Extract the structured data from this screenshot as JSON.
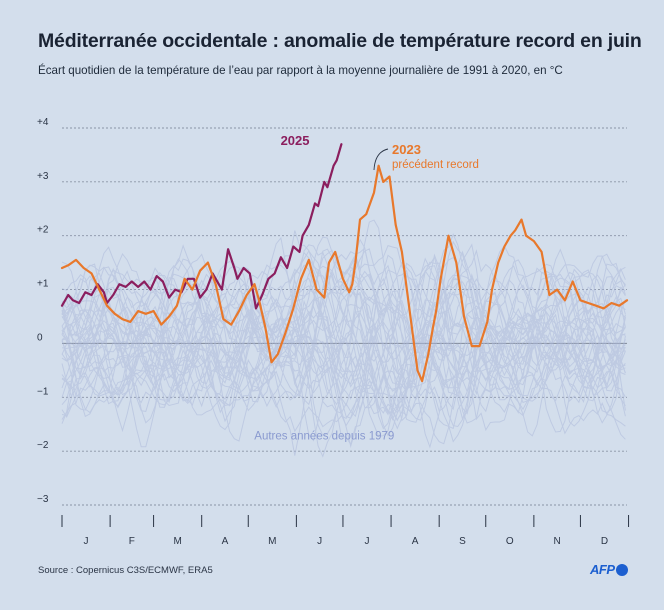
{
  "title": "Méditerranée occidentale : anomalie de température record en juin",
  "subtitle": "Écart quotidien de la température de l’eau par rapport à la moyenne journalière de 1991 à 2020, en °C",
  "source": "Source : Copernicus C3S/ECMWF, ERA5",
  "logo": "AFP",
  "chart_data": {
    "type": "line",
    "ylim": [
      -3,
      4
    ],
    "xlim": [
      1,
      365
    ],
    "y_ticks": [
      -3,
      -2,
      -1,
      0,
      1,
      2,
      3,
      4
    ],
    "y_tick_labels": [
      "−3",
      "−2",
      "−1",
      "0",
      "+1",
      "+2",
      "+3",
      "+4"
    ],
    "months": [
      "J",
      "F",
      "M",
      "A",
      "M",
      "J",
      "J",
      "A",
      "S",
      "O",
      "N",
      "D"
    ],
    "month_starts": [
      1,
      32,
      60,
      91,
      121,
      152,
      182,
      213,
      244,
      274,
      305,
      335,
      366
    ],
    "colors": {
      "2025": "#8b1e5e",
      "2023": "#e8782b",
      "others": "#aebadb",
      "grid": "#8a94a6"
    },
    "annotations": {
      "2025": {
        "label": "2025",
        "day": 155,
        "y": 3.8
      },
      "2023": {
        "label": "2023",
        "sublabel": "précédent record",
        "day": 208,
        "y": 3.6
      },
      "others": {
        "label": "Autres années depuis 1979",
        "day": 170,
        "y": -1.78
      }
    },
    "series": [
      {
        "name": "2025",
        "x": [
          1,
          5,
          8,
          12,
          16,
          20,
          24,
          28,
          30,
          34,
          38,
          42,
          46,
          50,
          54,
          58,
          62,
          66,
          70,
          74,
          78,
          82,
          86,
          90,
          94,
          98,
          102,
          104,
          108,
          112,
          114,
          118,
          122,
          126,
          130,
          134,
          138,
          142,
          146,
          150,
          154,
          156,
          160,
          164,
          166,
          170,
          172,
          176,
          178,
          181
        ],
        "y": [
          0.7,
          0.9,
          0.8,
          0.75,
          0.95,
          0.9,
          1.1,
          0.95,
          0.75,
          0.9,
          1.1,
          1.05,
          1.15,
          1.05,
          1.15,
          1.0,
          1.25,
          1.15,
          0.85,
          1.0,
          0.95,
          1.2,
          1.2,
          0.85,
          1.0,
          1.3,
          1.1,
          1.0,
          1.75,
          1.4,
          1.2,
          1.4,
          1.3,
          0.65,
          0.9,
          1.2,
          1.3,
          1.6,
          1.4,
          1.8,
          1.7,
          2.0,
          2.2,
          2.6,
          2.55,
          3.0,
          2.9,
          3.3,
          3.4,
          3.7
        ]
      },
      {
        "name": "2023",
        "x": [
          1,
          5,
          10,
          15,
          20,
          25,
          30,
          35,
          40,
          45,
          50,
          55,
          60,
          65,
          70,
          75,
          80,
          85,
          90,
          95,
          100,
          105,
          110,
          115,
          120,
          125,
          128,
          132,
          136,
          140,
          145,
          150,
          155,
          160,
          165,
          170,
          173,
          177,
          182,
          186,
          188,
          190,
          193,
          197,
          202,
          205,
          208,
          212,
          216,
          220,
          225,
          230,
          233,
          237,
          240,
          242,
          245,
          250,
          255,
          260,
          265,
          270,
          275,
          278,
          282,
          286,
          290,
          293,
          297,
          300,
          305,
          310,
          315,
          320,
          325,
          330,
          335,
          340,
          345,
          350,
          355,
          360,
          365
        ],
        "y": [
          1.4,
          1.45,
          1.55,
          1.4,
          1.3,
          1.0,
          0.7,
          0.55,
          0.45,
          0.4,
          0.6,
          0.55,
          0.6,
          0.35,
          0.5,
          0.7,
          1.2,
          1.0,
          1.35,
          1.5,
          1.1,
          0.45,
          0.35,
          0.6,
          0.9,
          1.1,
          0.8,
          0.3,
          -0.35,
          -0.2,
          0.2,
          0.65,
          1.2,
          1.55,
          1.0,
          0.85,
          1.5,
          1.7,
          1.2,
          0.95,
          1.1,
          1.5,
          2.3,
          2.4,
          2.8,
          3.3,
          3.0,
          3.1,
          2.2,
          1.7,
          0.6,
          -0.5,
          -0.7,
          -0.2,
          0.3,
          0.6,
          1.2,
          2.0,
          1.5,
          0.5,
          -0.05,
          -0.05,
          0.4,
          1.0,
          1.5,
          1.8,
          2.0,
          2.1,
          2.3,
          2.0,
          1.9,
          1.7,
          0.9,
          1.0,
          0.8,
          1.15,
          0.8,
          0.75,
          0.7,
          0.65,
          0.75,
          0.7,
          0.8
        ]
      }
    ]
  }
}
